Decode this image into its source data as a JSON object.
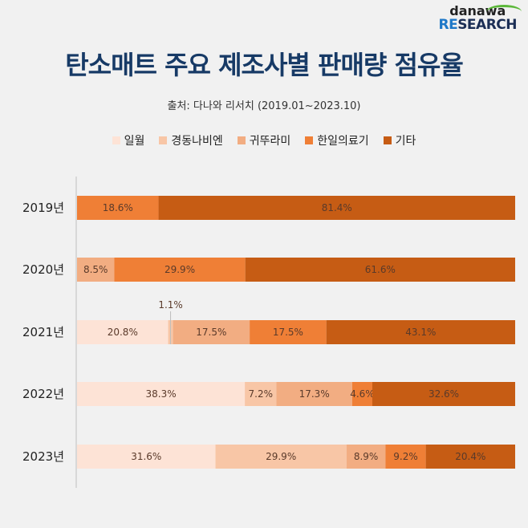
{
  "brand": {
    "logo_top": "danawa",
    "logo_bottom_highlight": "RE",
    "logo_bottom_rest": "SEARCH"
  },
  "header": {
    "title": "탄소매트 주요 제조사별 판매량 점유율",
    "source": "출처: 다나와 리서치 (2019.01~2023.10)"
  },
  "chart_data": {
    "type": "bar",
    "orientation": "horizontal",
    "stacked": true,
    "title": "탄소매트 주요 제조사별 판매량 점유율",
    "subtitle": "출처: 다나와 리서치 (2019.01~2023.10)",
    "xlabel": "",
    "ylabel": "",
    "xlim": [
      0,
      100
    ],
    "grid": false,
    "legend_position": "top",
    "categories": [
      "2019년",
      "2020년",
      "2021년",
      "2022년",
      "2023년"
    ],
    "series": [
      {
        "name": "일월",
        "color": "#fde3d6",
        "values": [
          0,
          0,
          20.8,
          38.3,
          31.6
        ]
      },
      {
        "name": "경동나비엔",
        "color": "#f8c6a6",
        "values": [
          0,
          0,
          1.1,
          7.2,
          29.9
        ]
      },
      {
        "name": "귀뚜라미",
        "color": "#f2ad82",
        "values": [
          0,
          8.5,
          17.5,
          17.3,
          8.9
        ]
      },
      {
        "name": "한일의료기",
        "color": "#ef7f36",
        "values": [
          18.6,
          29.9,
          17.5,
          4.6,
          9.2
        ]
      },
      {
        "name": "기타",
        "color": "#c65c14",
        "values": [
          81.4,
          61.6,
          43.1,
          32.6,
          20.4
        ]
      }
    ],
    "labels": [
      [
        "",
        "",
        "",
        "18.6%",
        "81.4%"
      ],
      [
        "",
        "",
        "8.5%",
        "29.9%",
        "61.6%"
      ],
      [
        "20.8%",
        "1.1%",
        "17.5%",
        "17.5%",
        "43.1%"
      ],
      [
        "38.3%",
        "7.2%",
        "17.3%",
        "4.6%",
        "32.6%"
      ],
      [
        "31.6%",
        "29.9%",
        "8.9%",
        "9.2%",
        "20.4%"
      ]
    ]
  }
}
